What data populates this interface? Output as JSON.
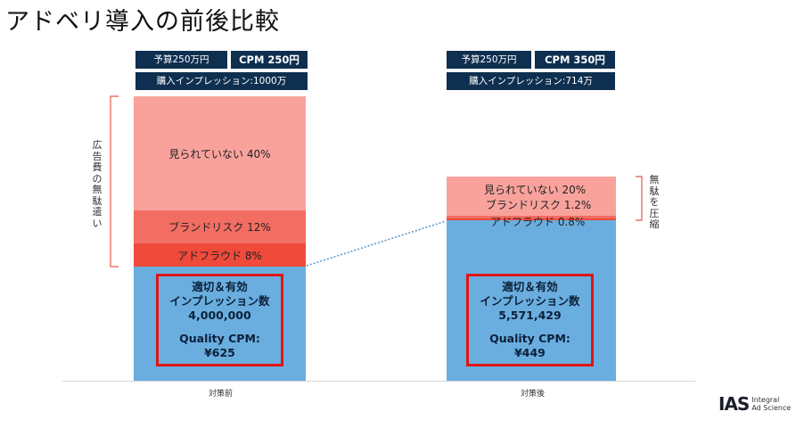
{
  "title": "アドベリ導入の前後比較",
  "colors": {
    "not_viewed": "#f9a29c",
    "brand_risk": "#f26d62",
    "ad_fraud": "#f04a3a",
    "quality": "#6aaee0",
    "label_bg": "#0e2f4f",
    "highlight": "#e01414"
  },
  "chart_data": {
    "type": "bar",
    "stacked": true,
    "categories": [
      "対策前",
      "対策後"
    ],
    "series": [
      {
        "name": "適切＆有効インプレッション数",
        "values": [
          4000000,
          5571429
        ]
      },
      {
        "name": "アドフラウド",
        "values_pct": [
          8,
          0.8
        ]
      },
      {
        "name": "ブランドリスク",
        "values_pct": [
          12,
          1.2
        ]
      },
      {
        "name": "見られていない",
        "values_pct": [
          40,
          20
        ]
      }
    ],
    "bars": [
      {
        "category": "対策前",
        "budget": "予算250万円",
        "cpm": "CPM 250円",
        "impressions": "購入インプレッション:1000万",
        "total_impressions": 10000000,
        "segments": [
          {
            "key": "quality",
            "label": "",
            "pct": 40
          },
          {
            "key": "ad_fraud",
            "label": "アドフラウド  8%",
            "pct": 8
          },
          {
            "key": "brand_risk",
            "label": "ブランドリスク  12%",
            "pct": 12
          },
          {
            "key": "not_viewed",
            "label": "見られていない  40%",
            "pct": 40
          }
        ],
        "box": {
          "line1": "適切＆有効",
          "line2": "インプレッション数",
          "count": "4,000,000",
          "qcpm_label": "Quality CPM:",
          "qcpm_value": "¥625"
        }
      },
      {
        "category": "対策後",
        "budget": "予算250万円",
        "cpm": "CPM 350円",
        "impressions": "購入インプレッション:714万",
        "total_impressions": 7140000,
        "segments": [
          {
            "key": "quality",
            "label": "",
            "pct": 78
          },
          {
            "key": "ad_fraud",
            "label": "アドフラウド  0.8%",
            "pct": 0.8
          },
          {
            "key": "brand_risk",
            "label": "ブランドリスク  1.2%",
            "pct": 1.2
          },
          {
            "key": "not_viewed",
            "label": "見られていない  20%",
            "pct": 20
          }
        ],
        "box": {
          "line1": "適切＆有効",
          "line2": "インプレッション数",
          "count": "5,571,429",
          "qcpm_label": "Quality CPM:",
          "qcpm_value": "¥449"
        }
      }
    ],
    "annotations": {
      "left_bracket": "広告費の無駄遣い",
      "right_bracket": "無駄を圧縮"
    }
  },
  "logo": {
    "mark": "IAS",
    "name": "Integral\nAd Science"
  }
}
